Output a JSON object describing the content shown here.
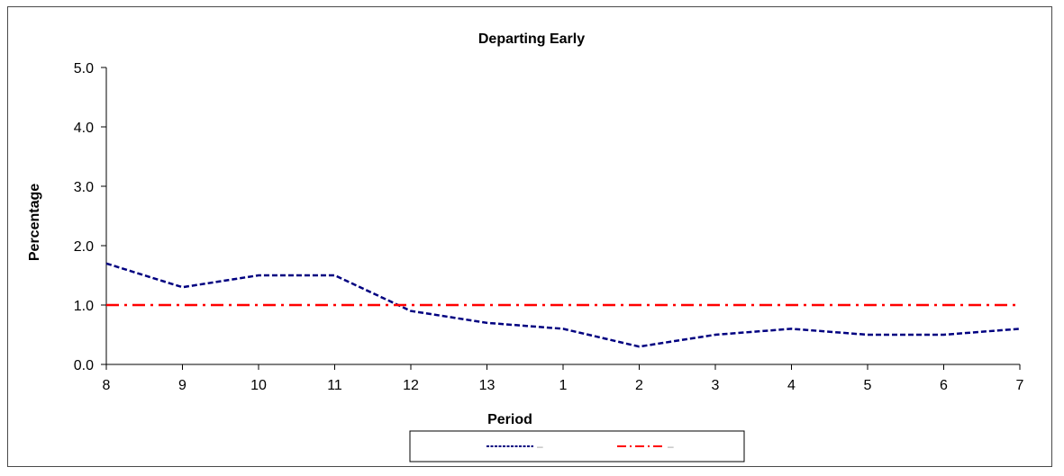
{
  "chart_data": {
    "type": "line",
    "title": "Departing Early",
    "xlabel": "Period",
    "ylabel": "Percentage",
    "categories": [
      "8",
      "9",
      "10",
      "11",
      "12",
      "13",
      "1",
      "2",
      "3",
      "4",
      "5",
      "6",
      "7"
    ],
    "yticks": [
      "0.0",
      "1.0",
      "2.0",
      "3.0",
      "4.0",
      "5.0"
    ],
    "ylim": [
      0,
      5
    ],
    "grid": false,
    "legend_position": "bottom",
    "series": [
      {
        "label": "–",
        "color": "#000080",
        "style": "dashed",
        "values": [
          1.7,
          1.3,
          1.5,
          1.5,
          0.9,
          0.7,
          0.6,
          0.3,
          0.5,
          0.6,
          0.5,
          0.5,
          0.6
        ]
      },
      {
        "label": "–",
        "color": "#ff0000",
        "style": "dash-dot",
        "values": [
          1.0,
          1.0,
          1.0,
          1.0,
          1.0,
          1.0,
          1.0,
          1.0,
          1.0,
          1.0,
          1.0,
          1.0,
          1.0
        ]
      }
    ]
  }
}
